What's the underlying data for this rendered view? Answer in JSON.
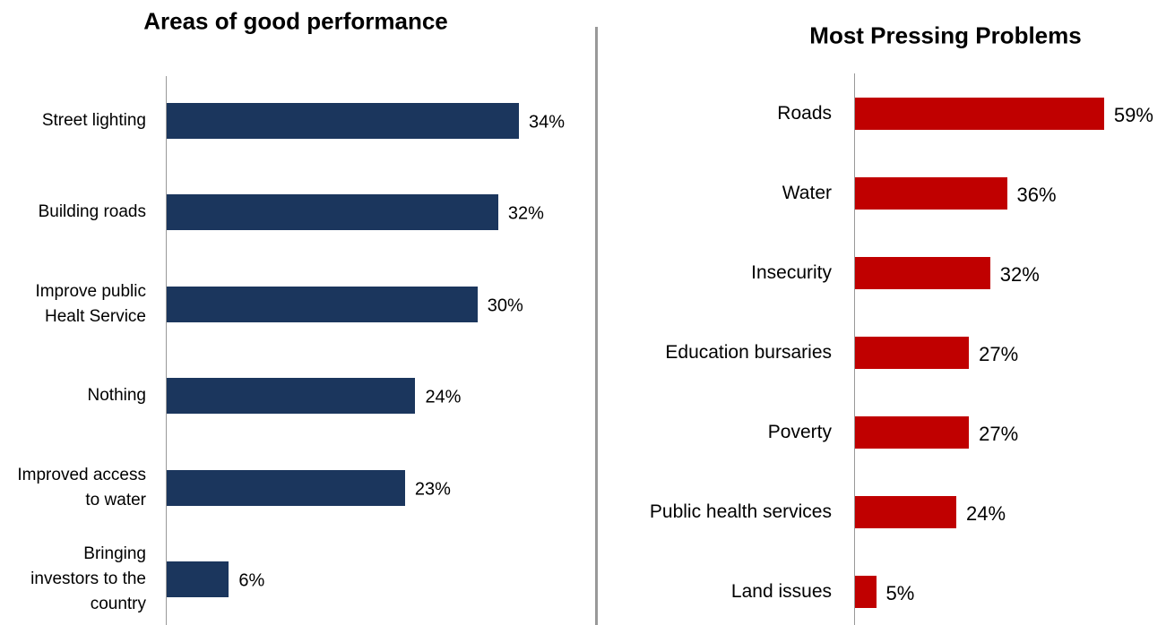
{
  "chart_data": [
    {
      "type": "bar",
      "orientation": "horizontal",
      "title": "Areas of good performance",
      "color": "#1b365d",
      "categories": [
        "Street lighting",
        "Building roads",
        "Improve public Healt Service",
        "Nothing",
        "Improved access to water",
        "Bringing investors to the country"
      ],
      "values": [
        34,
        32,
        30,
        24,
        23,
        6
      ],
      "value_labels": [
        "34%",
        "32%",
        "30%",
        "24%",
        "23%",
        "6%"
      ]
    },
    {
      "type": "bar",
      "orientation": "horizontal",
      "title": "Most Pressing Problems",
      "color": "#c00000",
      "categories": [
        "Roads",
        "Water",
        "Insecurity",
        "Education bursaries",
        "Poverty",
        "Public health services",
        "Land issues"
      ],
      "values": [
        59,
        36,
        32,
        27,
        27,
        24,
        5
      ],
      "value_labels": [
        "59%",
        "36%",
        "32%",
        "27%",
        "27%",
        "24%",
        "5%"
      ]
    }
  ]
}
